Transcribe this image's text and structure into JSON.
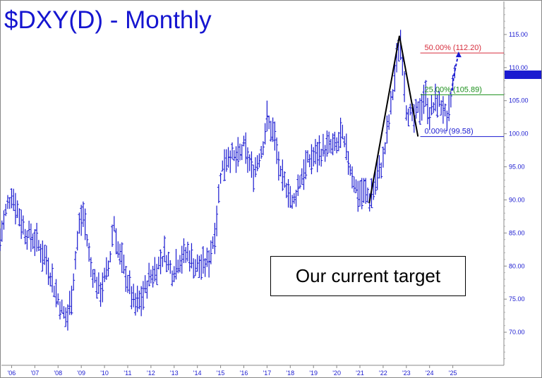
{
  "chart_data": {
    "type": "ohlc",
    "title": "$DXY(D) - Monthly",
    "last_price_label": "108.92",
    "last_price": 108.92,
    "ylim": [
      65,
      120
    ],
    "y_ticks": [
      70,
      75,
      80,
      85,
      90,
      95,
      100,
      105,
      110,
      115
    ],
    "y_tick_labels": [
      "70.00",
      "75.00",
      "80.00",
      "85.00",
      "90.00",
      "95.00",
      "100.00",
      "105.00",
      "110.00",
      "115.00"
    ],
    "x_range": [
      2005.5,
      2027.2
    ],
    "x_ticks": [
      2006,
      2007,
      2008,
      2009,
      2010,
      2011,
      2012,
      2013,
      2014,
      2015,
      2016,
      2017,
      2018,
      2019,
      2020,
      2021,
      2022,
      2023,
      2024,
      2025
    ],
    "x_tick_labels": [
      "'06",
      "'07",
      "'08",
      "'09",
      "'10",
      "'11",
      "'12",
      "'13",
      "'14",
      "'15",
      "'16",
      "'17",
      "'18",
      "'19",
      "'20",
      "'21",
      "'22",
      "'23",
      "'24",
      "'25"
    ],
    "price_path": [
      [
        2005.5,
        84
      ],
      [
        2005.8,
        89
      ],
      [
        2006.0,
        91
      ],
      [
        2006.3,
        88
      ],
      [
        2006.6,
        85
      ],
      [
        2007.0,
        84
      ],
      [
        2007.5,
        81
      ],
      [
        2007.9,
        76
      ],
      [
        2008.2,
        73
      ],
      [
        2008.4,
        72
      ],
      [
        2008.6,
        76
      ],
      [
        2008.9,
        86
      ],
      [
        2009.1,
        88
      ],
      [
        2009.4,
        80
      ],
      [
        2009.8,
        76
      ],
      [
        2010.2,
        80
      ],
      [
        2010.4,
        87
      ],
      [
        2010.6,
        82
      ],
      [
        2010.9,
        79
      ],
      [
        2011.3,
        74
      ],
      [
        2011.6,
        75
      ],
      [
        2011.9,
        78
      ],
      [
        2012.3,
        80
      ],
      [
        2012.6,
        82
      ],
      [
        2012.9,
        79
      ],
      [
        2013.2,
        81
      ],
      [
        2013.6,
        82
      ],
      [
        2013.9,
        80
      ],
      [
        2014.3,
        80
      ],
      [
        2014.5,
        81
      ],
      [
        2014.8,
        86
      ],
      [
        2015.0,
        94
      ],
      [
        2015.3,
        97
      ],
      [
        2015.7,
        96
      ],
      [
        2016.0,
        98
      ],
      [
        2016.4,
        94
      ],
      [
        2016.8,
        98
      ],
      [
        2017.0,
        102
      ],
      [
        2017.3,
        100
      ],
      [
        2017.6,
        93
      ],
      [
        2017.9,
        92
      ],
      [
        2018.1,
        89
      ],
      [
        2018.4,
        93
      ],
      [
        2018.8,
        96
      ],
      [
        2019.2,
        97
      ],
      [
        2019.6,
        98
      ],
      [
        2020.0,
        98
      ],
      [
        2020.2,
        100
      ],
      [
        2020.5,
        96
      ],
      [
        2020.9,
        91
      ],
      [
        2021.3,
        91
      ],
      [
        2021.4,
        90
      ],
      [
        2021.7,
        93
      ],
      [
        2022.0,
        96
      ],
      [
        2022.3,
        103
      ],
      [
        2022.7,
        114
      ],
      [
        2022.8,
        113
      ],
      [
        2023.0,
        104
      ],
      [
        2023.3,
        102
      ],
      [
        2023.6,
        104
      ],
      [
        2023.8,
        106
      ],
      [
        2024.0,
        103
      ],
      [
        2024.3,
        105
      ],
      [
        2024.6,
        104
      ],
      [
        2024.75,
        101
      ],
      [
        2024.95,
        106
      ],
      [
        2025.05,
        108.9
      ]
    ],
    "swing_points": [
      [
        2021.4,
        89.5
      ],
      [
        2022.7,
        114.8
      ],
      [
        2023.5,
        99.58
      ]
    ],
    "projection": [
      [
        2024.95,
        106.5
      ],
      [
        2025.05,
        108.9
      ],
      [
        2025.25,
        112.2
      ]
    ],
    "fib_levels": [
      {
        "label": "50.00% (112.20)",
        "value": 112.2,
        "color": "#d62d3c"
      },
      {
        "label": "25.00% (105.89)",
        "value": 105.89,
        "color": "#1a8f1a"
      },
      {
        "label": "0.00% (99.58)",
        "value": 99.58,
        "color": "#1a1ad0"
      }
    ],
    "annotation": "Our current target",
    "colors": {
      "bars": "#1a1ad0",
      "axis": "#1a1ad0",
      "title": "#1515d0",
      "pattern": "#000000",
      "price_tag": "#1a1ad0"
    }
  }
}
